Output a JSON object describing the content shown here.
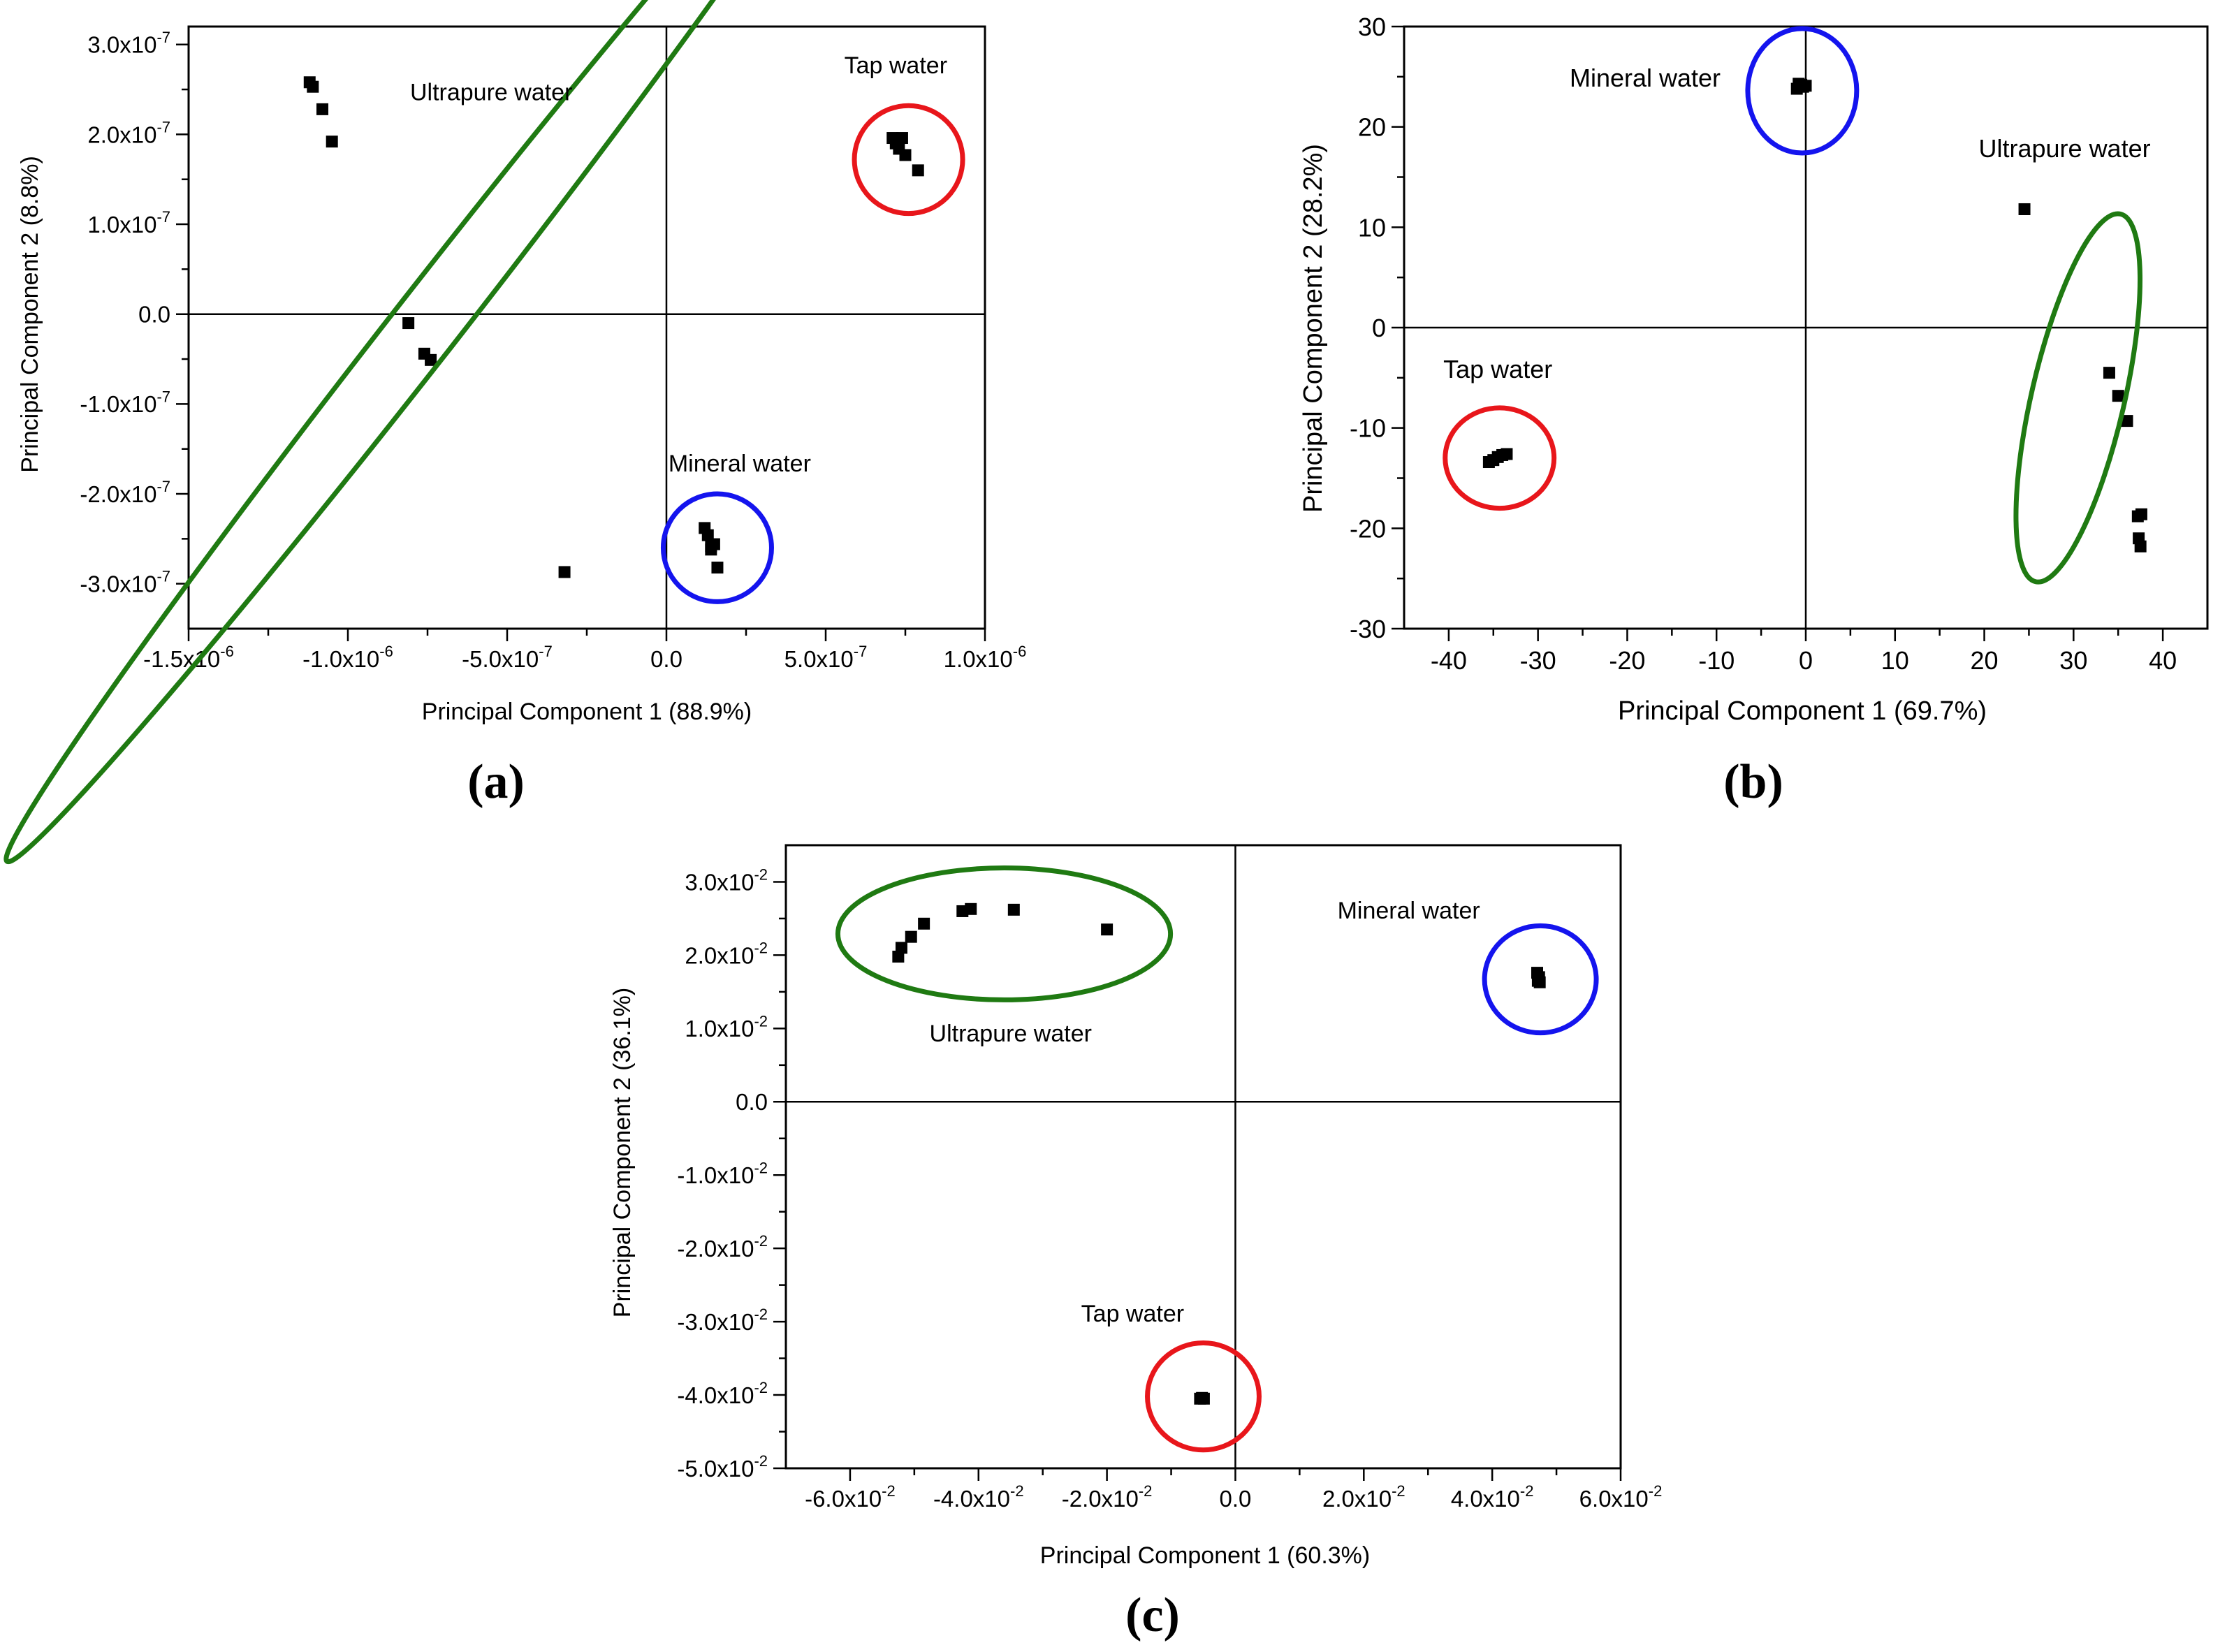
{
  "colors": {
    "ultrapure": "#1f7a12",
    "tap": "#e8161b",
    "mineral": "#1414ee",
    "points": "#000000",
    "axes": "#000000"
  },
  "chart_data": [
    {
      "type": "scatter",
      "panel_label": "(a)",
      "xlabel": "Principal Component 1 (88.9%)",
      "ylabel": "Principal Component 2 (8.8%)",
      "xlim": [
        -1.5e-06,
        1e-06
      ],
      "ylim": [
        -3.5e-07,
        3.2e-07
      ],
      "xtick_values": [
        -1.5e-06,
        -1e-06,
        -5e-07,
        0,
        5e-07,
        1e-06
      ],
      "xtick_labels": [
        {
          "m": "-1.5x10",
          "e": "-6"
        },
        {
          "m": "-1.0x10",
          "e": "-6"
        },
        {
          "m": "-5.0x10",
          "e": "-7"
        },
        {
          "m": "0.0",
          "e": ""
        },
        {
          "m": "5.0x10",
          "e": "-7"
        },
        {
          "m": "1.0x10",
          "e": "-6"
        }
      ],
      "ytick_values": [
        3e-07,
        2e-07,
        1e-07,
        0,
        -1e-07,
        -2e-07,
        -3e-07
      ],
      "ytick_labels": [
        {
          "m": "3.0x10",
          "e": "-7"
        },
        {
          "m": "2.0x10",
          "e": "-7"
        },
        {
          "m": "1.0x10",
          "e": "-7"
        },
        {
          "m": "0.0",
          "e": ""
        },
        {
          "m": "-1.0x10",
          "e": "-7"
        },
        {
          "m": "-2.0x10",
          "e": "-7"
        },
        {
          "m": "-3.0x10",
          "e": "-7"
        }
      ],
      "series": [
        {
          "name": "Ultrapure water",
          "group": "ultrapure",
          "x": [
            -1.12e-06,
            -1.11e-06,
            -1.08e-06,
            -1.05e-06,
            -8.1e-07,
            -7.6e-07,
            -7.4e-07,
            -3.2e-07
          ],
          "y": [
            2.58e-07,
            2.53e-07,
            2.28e-07,
            1.92e-07,
            -1e-08,
            -4.4e-08,
            -5.1e-08,
            -2.87e-07
          ]
        },
        {
          "name": "Tap water",
          "group": "tap",
          "x": [
            7.1e-07,
            7.2e-07,
            7.4e-07,
            7.3e-07,
            7.5e-07,
            7.9e-07
          ],
          "y": [
            1.96e-07,
            1.9e-07,
            1.96e-07,
            1.84e-07,
            1.77e-07,
            1.6e-07
          ]
        },
        {
          "name": "Mineral water",
          "group": "mineral",
          "x": [
            1.2e-07,
            1.3e-07,
            1.4e-07,
            1.5e-07,
            1.4e-07,
            1.6e-07
          ],
          "y": [
            -2.38e-07,
            -2.46e-07,
            -2.58e-07,
            -2.56e-07,
            -2.62e-07,
            -2.82e-07
          ]
        }
      ],
      "ellipses": [
        {
          "group": "ultrapure",
          "cx": -7.5e-07,
          "cy": -1e-08,
          "rx": 7.6e-07,
          "ry": 1.05e-07,
          "rot": 52
        },
        {
          "group": "tap",
          "cx": 7.6e-07,
          "cy": 1.72e-07,
          "rx": 1.7e-07,
          "ry": 6e-08,
          "rot": 0
        },
        {
          "group": "mineral",
          "cx": 1.6e-07,
          "cy": -2.6e-07,
          "rx": 1.7e-07,
          "ry": 6e-08,
          "rot": 0
        }
      ],
      "annotations": [
        {
          "text": "Ultrapure water",
          "x": -5.5e-07,
          "y": 2.38e-07
        },
        {
          "text": "Tap water",
          "x": 7.2e-07,
          "y": 2.68e-07
        },
        {
          "text": "Mineral water",
          "x": 2.3e-07,
          "y": -1.75e-07
        }
      ]
    },
    {
      "type": "scatter",
      "panel_label": "(b)",
      "xlabel": "Principal Component 1 (69.7%)",
      "ylabel": "Principal Component 2 (28.2%)",
      "xlim": [
        -45,
        45
      ],
      "ylim": [
        -30,
        30
      ],
      "xtick_values": [
        -40,
        -30,
        -20,
        -10,
        0,
        10,
        20,
        30,
        40
      ],
      "xtick_labels": [
        {
          "m": "-40",
          "e": ""
        },
        {
          "m": "-30",
          "e": ""
        },
        {
          "m": "-20",
          "e": ""
        },
        {
          "m": "-10",
          "e": ""
        },
        {
          "m": "0",
          "e": ""
        },
        {
          "m": "10",
          "e": ""
        },
        {
          "m": "20",
          "e": ""
        },
        {
          "m": "30",
          "e": ""
        },
        {
          "m": "40",
          "e": ""
        }
      ],
      "ytick_values": [
        30,
        20,
        10,
        0,
        -10,
        -20,
        -30
      ],
      "ytick_labels": [
        {
          "m": "30",
          "e": ""
        },
        {
          "m": "20",
          "e": ""
        },
        {
          "m": "10",
          "e": ""
        },
        {
          "m": "0",
          "e": ""
        },
        {
          "m": "-10",
          "e": ""
        },
        {
          "m": "-20",
          "e": ""
        },
        {
          "m": "-30",
          "e": ""
        }
      ],
      "series": [
        {
          "name": "Mineral water",
          "group": "mineral",
          "x": [
            -1.0,
            -0.5,
            -0.3,
            -0.8,
            0.0
          ],
          "y": [
            23.8,
            24.2,
            24.0,
            24.3,
            24.1
          ]
        },
        {
          "name": "Ultrapure water",
          "group": "ultrapure",
          "x": [
            24.5,
            34.0,
            35.0,
            36.0,
            37.2,
            37.6,
            37.3,
            37.5
          ],
          "y": [
            11.8,
            -4.5,
            -6.8,
            -9.3,
            -18.8,
            -18.6,
            -21.0,
            -21.8
          ]
        },
        {
          "name": "Tap water",
          "group": "tap",
          "x": [
            -35.5,
            -35.0,
            -34.5,
            -34.0,
            -33.5
          ],
          "y": [
            -13.4,
            -13.2,
            -12.9,
            -12.7,
            -12.6
          ]
        }
      ],
      "ellipses": [
        {
          "group": "mineral",
          "cx": -0.4,
          "cy": 23.6,
          "rx": 6.1,
          "ry": 6.2,
          "rot": 0
        },
        {
          "group": "ultrapure",
          "cx": 30.5,
          "cy": -7.0,
          "rx": 18.8,
          "ry": 5.2,
          "rot": 77
        },
        {
          "group": "tap",
          "cx": -34.3,
          "cy": -13.0,
          "rx": 6.1,
          "ry": 5.0,
          "rot": 0
        }
      ],
      "annotations": [
        {
          "text": "Mineral water",
          "x": -18.0,
          "y": 24.0
        },
        {
          "text": "Ultrapure water",
          "x": 29.0,
          "y": 17.0
        },
        {
          "text": "Tap water",
          "x": -34.5,
          "y": -5.0
        }
      ]
    },
    {
      "type": "scatter",
      "panel_label": "(c)",
      "xlabel": "Principal Component 1 (60.3%)",
      "ylabel": "Principal Component 2 (36.1%)",
      "xlim": [
        -0.07,
        0.06
      ],
      "ylim": [
        -0.05,
        0.035
      ],
      "xtick_values": [
        -0.06,
        -0.04,
        -0.02,
        0,
        0.02,
        0.04,
        0.06
      ],
      "xtick_labels": [
        {
          "m": "-6.0x10",
          "e": "-2"
        },
        {
          "m": "-4.0x10",
          "e": "-2"
        },
        {
          "m": "-2.0x10",
          "e": "-2"
        },
        {
          "m": "0.0",
          "e": ""
        },
        {
          "m": "2.0x10",
          "e": "-2"
        },
        {
          "m": "4.0x10",
          "e": "-2"
        },
        {
          "m": "6.0x10",
          "e": "-2"
        }
      ],
      "ytick_values": [
        0.03,
        0.02,
        0.01,
        0,
        -0.01,
        -0.02,
        -0.03,
        -0.04,
        -0.05
      ],
      "ytick_labels": [
        {
          "m": "3.0x10",
          "e": "-2"
        },
        {
          "m": "2.0x10",
          "e": "-2"
        },
        {
          "m": "1.0x10",
          "e": "-2"
        },
        {
          "m": "0.0",
          "e": ""
        },
        {
          "m": "-1.0x10",
          "e": "-2"
        },
        {
          "m": "-2.0x10",
          "e": "-2"
        },
        {
          "m": "-3.0x10",
          "e": "-2"
        },
        {
          "m": "-4.0x10",
          "e": "-2"
        },
        {
          "m": "-5.0x10",
          "e": "-2"
        }
      ],
      "series": [
        {
          "name": "Ultrapure water",
          "group": "ultrapure",
          "x": [
            -0.0525,
            -0.052,
            -0.0505,
            -0.0485,
            -0.0425,
            -0.0412,
            -0.0345,
            -0.02
          ],
          "y": [
            0.0198,
            0.021,
            0.0225,
            0.0243,
            0.026,
            0.0263,
            0.0262,
            0.0235
          ]
        },
        {
          "name": "Mineral water",
          "group": "mineral",
          "x": [
            0.047,
            0.0473,
            0.0471,
            0.0474
          ],
          "y": [
            0.0176,
            0.017,
            0.0165,
            0.0163
          ]
        },
        {
          "name": "Tap water",
          "group": "tap",
          "x": [
            -0.0055,
            -0.0052,
            -0.0049
          ],
          "y": [
            -0.0405,
            -0.0404,
            -0.0405
          ]
        }
      ],
      "ellipses": [
        {
          "group": "ultrapure",
          "cx": -0.036,
          "cy": 0.0229,
          "rx": 0.0259,
          "ry": 0.009,
          "rot": 0
        },
        {
          "group": "mineral",
          "cx": 0.0475,
          "cy": 0.0167,
          "rx": 0.0087,
          "ry": 0.0073,
          "rot": 0
        },
        {
          "group": "tap",
          "cx": -0.005,
          "cy": -0.0402,
          "rx": 0.0087,
          "ry": 0.0073,
          "rot": 0
        }
      ],
      "annotations": [
        {
          "text": "Ultrapure water",
          "x": -0.035,
          "y": 0.0082
        },
        {
          "text": "Mineral water",
          "x": 0.027,
          "y": 0.025
        },
        {
          "text": "Tap water",
          "x": -0.016,
          "y": -0.03
        }
      ]
    }
  ]
}
